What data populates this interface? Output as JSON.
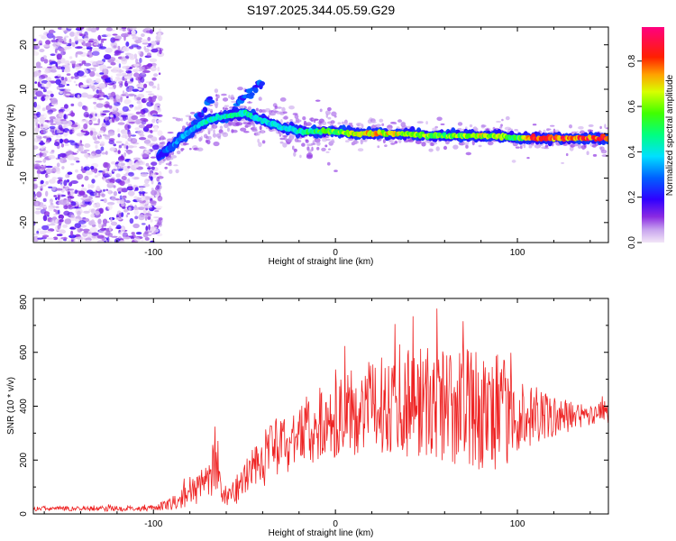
{
  "title": "S197.2025.344.05.59.G29",
  "chart_data": [
    {
      "type": "heatmap",
      "name": "spectrogram",
      "xlabel": "Height of straight line (km)",
      "ylabel": "Frequency (Hz)",
      "xlim": [
        -166,
        150
      ],
      "ylim": [
        -24.5,
        24
      ],
      "xticks": [
        -100,
        0,
        100
      ],
      "yticks": [
        -20,
        -10,
        0,
        10,
        20
      ],
      "colorbar": {
        "label": "Normalized spectral amplitude",
        "range": [
          0,
          0.95
        ],
        "ticks": [
          0.0,
          0.2,
          0.4,
          0.6,
          0.8
        ]
      },
      "noise_region_x": [
        -166,
        -98
      ],
      "ridge": {
        "x": [
          -97,
          -90,
          -85,
          -80,
          -75,
          -70,
          -60,
          -50,
          -40,
          -30,
          -20,
          -10,
          0,
          10,
          20,
          30,
          40,
          50,
          60,
          70,
          80,
          90,
          100,
          110,
          120,
          130,
          140,
          150
        ],
        "frequency": [
          -5,
          -3,
          -1,
          0.5,
          2,
          3,
          4,
          4.5,
          3,
          1.5,
          0.5,
          0.5,
          0.5,
          0,
          0,
          0,
          0,
          -0.5,
          -0.5,
          -0.5,
          -0.5,
          -0.5,
          -1,
          -1,
          -1,
          -1,
          -1,
          -1
        ],
        "amplitude": [
          0.25,
          0.35,
          0.4,
          0.4,
          0.45,
          0.5,
          0.5,
          0.5,
          0.45,
          0.45,
          0.5,
          0.6,
          0.65,
          0.75,
          0.8,
          0.8,
          0.7,
          0.7,
          0.65,
          0.7,
          0.75,
          0.7,
          0.6,
          0.95,
          0.95,
          0.9,
          0.95,
          0.95
        ]
      },
      "branches": [
        {
          "x": [
            -78,
            -73,
            -68
          ],
          "frequency": [
            2,
            5,
            8
          ]
        },
        {
          "x": [
            -62,
            -55,
            -48,
            -40
          ],
          "frequency": [
            3,
            6,
            9,
            11
          ]
        }
      ]
    },
    {
      "type": "line",
      "name": "snr",
      "xlabel": "Height of straight line (km)",
      "ylabel": "SNR (10 * v/v)",
      "xlim": [
        -166,
        150
      ],
      "ylim": [
        0,
        800
      ],
      "xticks": [
        -100,
        0,
        100
      ],
      "yticks": [
        0,
        200,
        400,
        600,
        800
      ],
      "color": "#ee2222",
      "x": [
        -166,
        -150,
        -130,
        -110,
        -100,
        -90,
        -85,
        -80,
        -75,
        -70,
        -66,
        -60,
        -55,
        -50,
        -45,
        -40,
        -35,
        -30,
        -20,
        -10,
        0,
        10,
        20,
        30,
        40,
        50,
        60,
        70,
        80,
        90,
        100,
        110,
        120,
        130,
        140,
        150
      ],
      "mean": [
        20,
        20,
        20,
        20,
        22,
        35,
        60,
        70,
        100,
        140,
        160,
        60,
        80,
        130,
        180,
        200,
        230,
        250,
        300,
        330,
        350,
        380,
        400,
        410,
        420,
        420,
        400,
        400,
        380,
        380,
        360,
        360,
        360,
        360,
        370,
        380
      ],
      "spread": [
        10,
        10,
        12,
        12,
        12,
        30,
        45,
        55,
        70,
        100,
        120,
        45,
        60,
        80,
        100,
        120,
        130,
        140,
        150,
        160,
        170,
        190,
        200,
        220,
        250,
        260,
        260,
        260,
        260,
        250,
        180,
        120,
        90,
        70,
        60,
        50
      ]
    }
  ]
}
